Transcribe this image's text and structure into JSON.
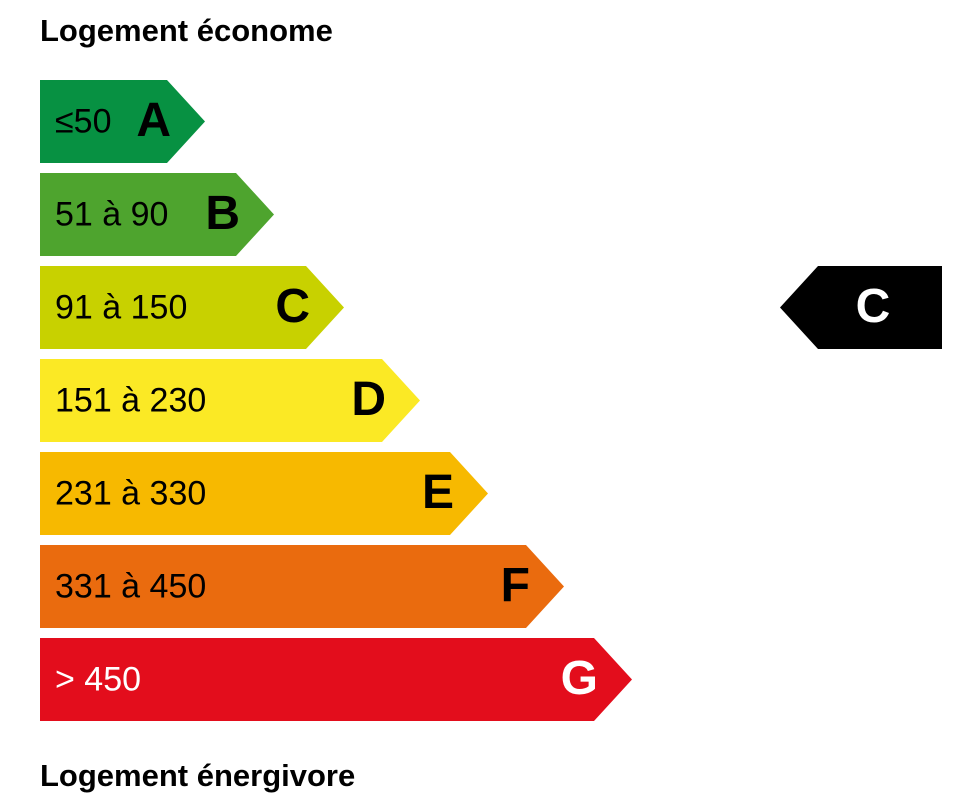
{
  "header": {
    "title": "Logement économe"
  },
  "bands": [
    {
      "range": "≤50",
      "letter": "A",
      "color": "#079142",
      "text_color": "#000000"
    },
    {
      "range": "51 à 90",
      "letter": "B",
      "color": "#4ea42e",
      "text_color": "#000000"
    },
    {
      "range": "91 à 150",
      "letter": "C",
      "color": "#c8d100",
      "text_color": "#000000"
    },
    {
      "range": "151 à 230",
      "letter": "D",
      "color": "#fbe925",
      "text_color": "#000000"
    },
    {
      "range": "231 à 330",
      "letter": "E",
      "color": "#f7b900",
      "text_color": "#000000"
    },
    {
      "range": "331 à 450",
      "letter": "F",
      "color": "#ea6b0e",
      "text_color": "#000000"
    },
    {
      "range": "> 450",
      "letter": "G",
      "color": "#e30d1c",
      "text_color": "#ffffff"
    }
  ],
  "indicator": {
    "letter": "C",
    "color": "#000000",
    "text_color": "#ffffff"
  },
  "footer": {
    "title": "Logement énergivore"
  }
}
